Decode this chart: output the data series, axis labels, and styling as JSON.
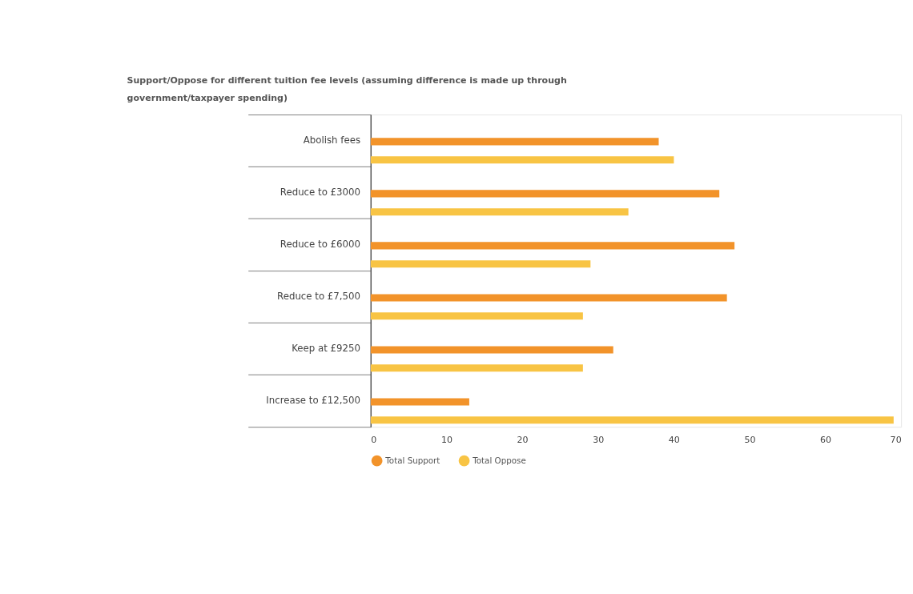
{
  "chart_data": {
    "type": "bar",
    "orientation": "horizontal",
    "title": [
      "Support/Oppose for different tuition fee levels (assuming difference is made up through",
      "government/taxpayer spending)"
    ],
    "categories": [
      "Abolish fees",
      "Reduce to £3000",
      "Reduce to £6000",
      "Reduce to £7,500",
      "Keep at £9250",
      "Increase to £12,500"
    ],
    "series": [
      {
        "name": "Total Support",
        "color": "#f2932a",
        "values": [
          38,
          46,
          48,
          47,
          32,
          13
        ]
      },
      {
        "name": "Total Oppose",
        "color": "#f8c444",
        "values": [
          40,
          34,
          29,
          28,
          28,
          69
        ]
      }
    ],
    "xlim": [
      0,
      70
    ],
    "xticks": [
      0,
      10,
      20,
      30,
      40,
      50,
      60,
      70
    ],
    "grid": false,
    "legend": "bottom"
  }
}
